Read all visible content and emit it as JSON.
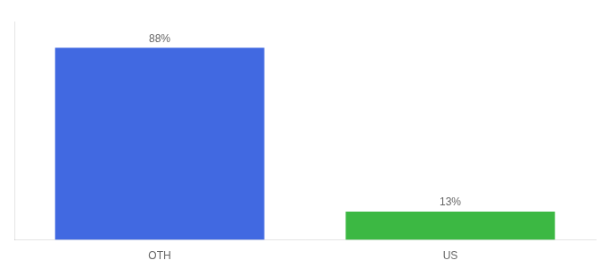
{
  "chart_data": {
    "type": "bar",
    "categories": [
      "OTH",
      "US"
    ],
    "values": [
      88,
      13
    ],
    "value_labels": [
      "88%",
      "13%"
    ],
    "colors": [
      "#4169e1",
      "#3cb843"
    ],
    "ylim": [
      0,
      100
    ],
    "grid": false,
    "data_labels": true,
    "tick_labels": "x"
  }
}
